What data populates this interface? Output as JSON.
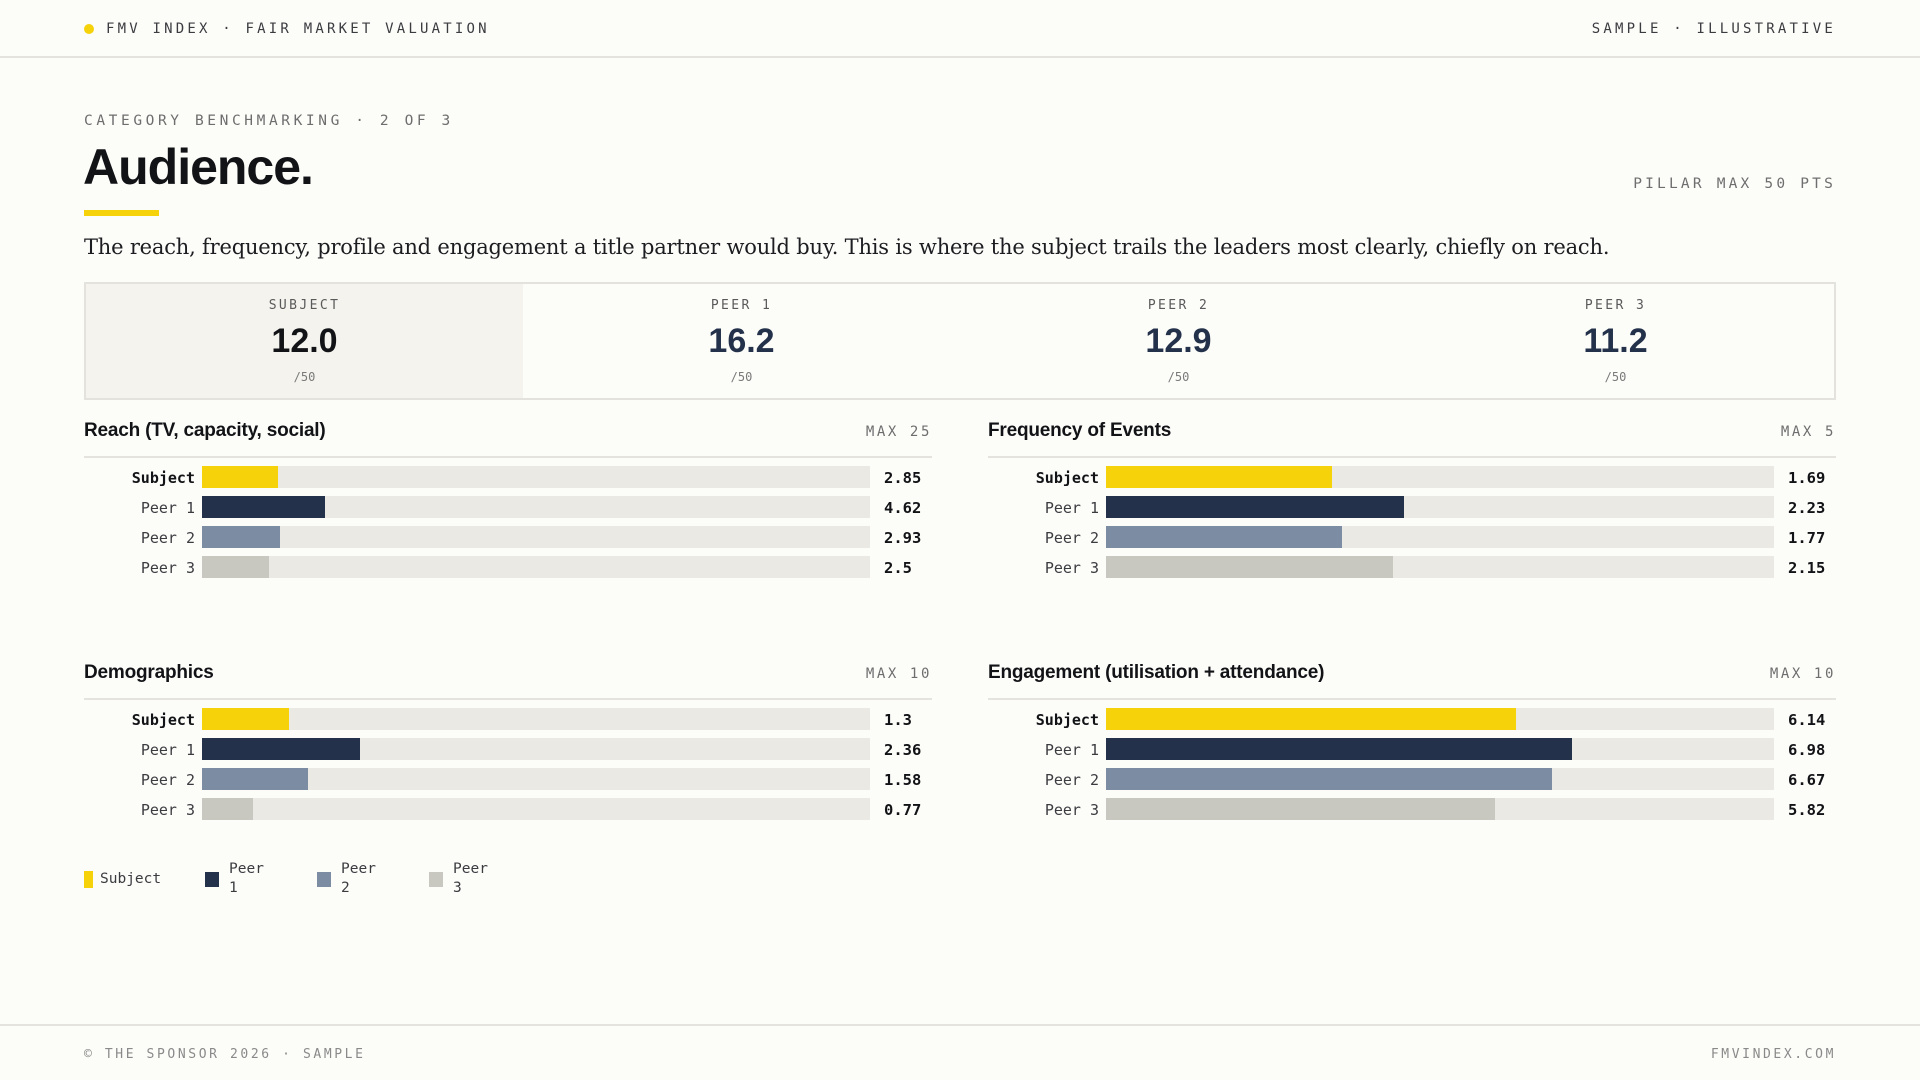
{
  "header": {
    "brand": "FMV INDEX · FAIR MARKET VALUATION",
    "tag": "SAMPLE · ILLUSTRATIVE"
  },
  "page": {
    "eyebrow": "CATEGORY BENCHMARKING · 2 OF 3",
    "title": "Audience.",
    "pillar_max": "PILLAR MAX 50 PTS",
    "lede": "The reach, frequency, profile and engagement a title partner would buy. This is where the subject trails the leaders most clearly, chiefly on reach."
  },
  "scores": [
    {
      "label": "SUBJECT",
      "value": "12.0",
      "max": "/50"
    },
    {
      "label": "PEER 1",
      "value": "16.2",
      "max": "/50"
    },
    {
      "label": "PEER 2",
      "value": "12.9",
      "max": "/50"
    },
    {
      "label": "PEER 3",
      "value": "11.2",
      "max": "/50"
    }
  ],
  "colors": {
    "subject": "#f5d20a",
    "peer1": "#23324a",
    "peer2": "#7b8ca3",
    "peer3": "#c9c8c0"
  },
  "chart_data": [
    {
      "type": "bar",
      "title": "Reach (TV, capacity, social)",
      "max_label": "MAX 25",
      "xlim": [
        0,
        25
      ],
      "categories": [
        "Subject",
        "Peer 1",
        "Peer 2",
        "Peer 3"
      ],
      "values": [
        2.85,
        4.62,
        2.93,
        2.5
      ],
      "value_labels": [
        "2.85",
        "4.62",
        "2.93",
        "2.5"
      ]
    },
    {
      "type": "bar",
      "title": "Frequency of Events",
      "max_label": "MAX 5",
      "xlim": [
        0,
        5
      ],
      "categories": [
        "Subject",
        "Peer 1",
        "Peer 2",
        "Peer 3"
      ],
      "values": [
        1.69,
        2.23,
        1.77,
        2.15
      ],
      "value_labels": [
        "1.69",
        "2.23",
        "1.77",
        "2.15"
      ]
    },
    {
      "type": "bar",
      "title": "Demographics",
      "max_label": "MAX 10",
      "xlim": [
        0,
        10
      ],
      "categories": [
        "Subject",
        "Peer 1",
        "Peer 2",
        "Peer 3"
      ],
      "values": [
        1.3,
        2.36,
        1.58,
        0.77
      ],
      "value_labels": [
        "1.3",
        "2.36",
        "1.58",
        "0.77"
      ]
    },
    {
      "type": "bar",
      "title": "Engagement (utilisation + attendance)",
      "max_label": "MAX 10",
      "xlim": [
        0,
        10
      ],
      "categories": [
        "Subject",
        "Peer 1",
        "Peer 2",
        "Peer 3"
      ],
      "values": [
        6.14,
        6.98,
        6.67,
        5.82
      ],
      "value_labels": [
        "6.14",
        "6.98",
        "6.67",
        "5.82"
      ]
    }
  ],
  "legend": [
    {
      "label": "Subject"
    },
    {
      "label": "Peer 1"
    },
    {
      "label": "Peer 2"
    },
    {
      "label": "Peer 3"
    }
  ],
  "footer": {
    "left": "© THE SPONSOR 2026 · SAMPLE",
    "right": "FMVINDEX.COM"
  }
}
